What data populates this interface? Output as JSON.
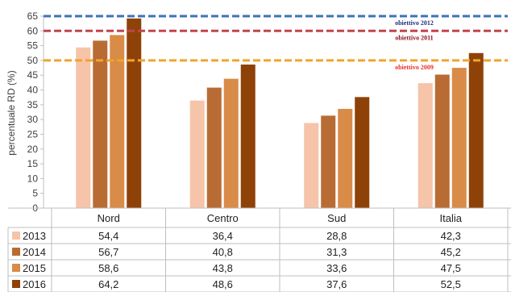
{
  "chart_data": {
    "type": "bar",
    "ylabel": "percentuale RD (%)",
    "ylim": [
      0,
      65
    ],
    "yticks": [
      0,
      5,
      10,
      15,
      20,
      25,
      30,
      35,
      40,
      45,
      50,
      55,
      60,
      65
    ],
    "categories": [
      "Nord",
      "Centro",
      "Sud",
      "Italia"
    ],
    "series": [
      {
        "name": "2013",
        "color": "#f6c4a8",
        "values": [
          54.4,
          36.4,
          28.8,
          42.3
        ],
        "labels": [
          "54,4",
          "36,4",
          "28,8",
          "42,3"
        ]
      },
      {
        "name": "2014",
        "color": "#b86c34",
        "values": [
          56.7,
          40.8,
          31.3,
          45.2
        ],
        "labels": [
          "56,7",
          "40,8",
          "31,3",
          "45,2"
        ]
      },
      {
        "name": "2015",
        "color": "#d98b48",
        "values": [
          58.6,
          43.8,
          33.6,
          47.5
        ],
        "labels": [
          "58,6",
          "43,8",
          "33,6",
          "47,5"
        ]
      },
      {
        "name": "2016",
        "color": "#8e4208",
        "values": [
          64.2,
          48.6,
          37.6,
          52.5
        ],
        "labels": [
          "64,2",
          "48,6",
          "37,6",
          "52,5"
        ]
      }
    ],
    "targets": [
      {
        "label": "obiettivo 2012",
        "value": 65,
        "color": "#3f72b8",
        "text_color": "#1f2f7a"
      },
      {
        "label": "obiettivo 2011",
        "value": 60,
        "color": "#c0444e",
        "text_color": "#8a1020"
      },
      {
        "label": "obiettivo 2009",
        "value": 50,
        "color": "#f2a42a",
        "text_color": "#e8302a"
      }
    ],
    "legend_placement": "table-left",
    "grid": false
  }
}
